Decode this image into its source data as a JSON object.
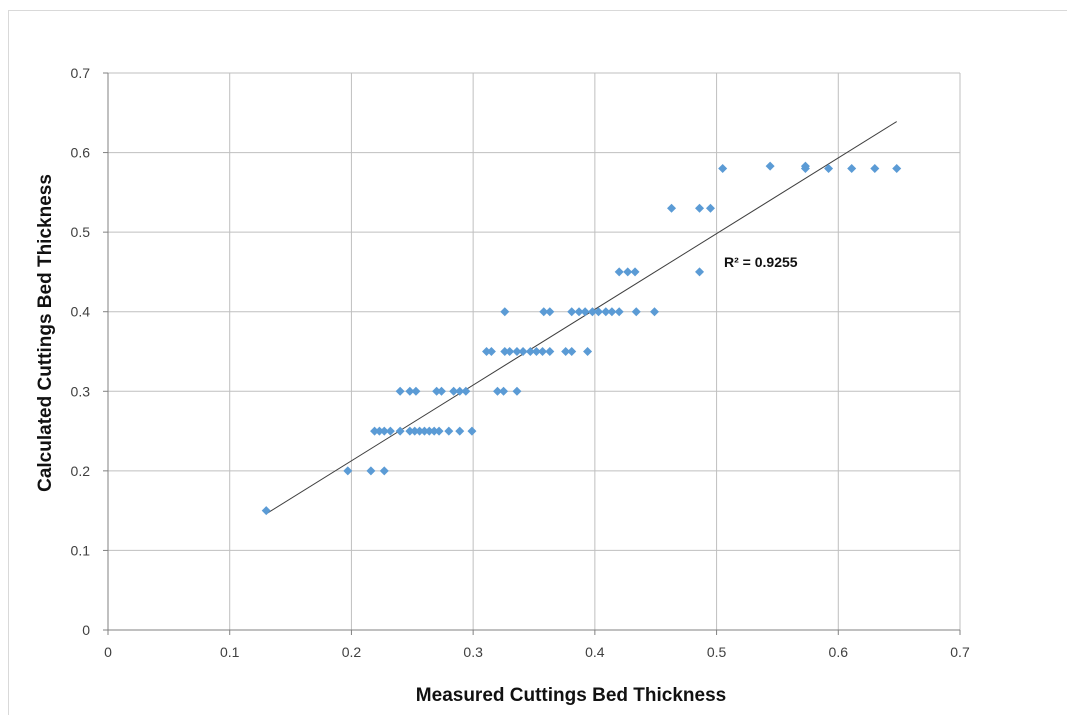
{
  "chart_data": {
    "type": "scatter",
    "title": "",
    "xlabel": "Measured  Cuttings  Bed Thickness",
    "ylabel": "Calculated  Cuttings Bed  Thickness",
    "xlim": [
      0,
      0.7
    ],
    "ylim": [
      0,
      0.7
    ],
    "xticks": [
      0,
      0.1,
      0.2,
      0.3,
      0.4,
      0.5,
      0.6,
      0.7
    ],
    "yticks": [
      0,
      0.1,
      0.2,
      0.3,
      0.4,
      0.5,
      0.6,
      0.7
    ],
    "xtick_labels": [
      "0",
      "0.1",
      "0.2",
      "0.3",
      "0.4",
      "0.5",
      "0.6",
      "0.7"
    ],
    "ytick_labels": [
      "0",
      "0.1",
      "0.2",
      "0.3",
      "0.4",
      "0.5",
      "0.6",
      "0.7"
    ],
    "grid": true,
    "marker_color": "#5b9bd5",
    "trendline_color": "#404040",
    "trendline": {
      "x": [
        0.13,
        0.648
      ],
      "y": [
        0.146,
        0.639
      ]
    },
    "annotation": "R² = 0.9255",
    "points": [
      [
        0.13,
        0.15
      ],
      [
        0.197,
        0.2
      ],
      [
        0.216,
        0.2
      ],
      [
        0.227,
        0.2
      ],
      [
        0.219,
        0.25
      ],
      [
        0.223,
        0.25
      ],
      [
        0.227,
        0.25
      ],
      [
        0.232,
        0.25
      ],
      [
        0.24,
        0.25
      ],
      [
        0.248,
        0.25
      ],
      [
        0.252,
        0.25
      ],
      [
        0.256,
        0.25
      ],
      [
        0.26,
        0.25
      ],
      [
        0.264,
        0.25
      ],
      [
        0.268,
        0.25
      ],
      [
        0.272,
        0.25
      ],
      [
        0.28,
        0.25
      ],
      [
        0.289,
        0.25
      ],
      [
        0.299,
        0.25
      ],
      [
        0.24,
        0.3
      ],
      [
        0.248,
        0.3
      ],
      [
        0.253,
        0.3
      ],
      [
        0.27,
        0.3
      ],
      [
        0.274,
        0.3
      ],
      [
        0.284,
        0.3
      ],
      [
        0.289,
        0.3
      ],
      [
        0.294,
        0.3
      ],
      [
        0.32,
        0.3
      ],
      [
        0.325,
        0.3
      ],
      [
        0.336,
        0.3
      ],
      [
        0.311,
        0.35
      ],
      [
        0.315,
        0.35
      ],
      [
        0.326,
        0.35
      ],
      [
        0.33,
        0.35
      ],
      [
        0.336,
        0.35
      ],
      [
        0.341,
        0.35
      ],
      [
        0.347,
        0.35
      ],
      [
        0.352,
        0.35
      ],
      [
        0.357,
        0.35
      ],
      [
        0.363,
        0.35
      ],
      [
        0.376,
        0.35
      ],
      [
        0.381,
        0.35
      ],
      [
        0.394,
        0.35
      ],
      [
        0.326,
        0.4
      ],
      [
        0.358,
        0.4
      ],
      [
        0.363,
        0.4
      ],
      [
        0.381,
        0.4
      ],
      [
        0.387,
        0.4
      ],
      [
        0.392,
        0.4
      ],
      [
        0.398,
        0.4
      ],
      [
        0.403,
        0.4
      ],
      [
        0.409,
        0.4
      ],
      [
        0.414,
        0.4
      ],
      [
        0.42,
        0.4
      ],
      [
        0.434,
        0.4
      ],
      [
        0.449,
        0.4
      ],
      [
        0.42,
        0.45
      ],
      [
        0.427,
        0.45
      ],
      [
        0.433,
        0.45
      ],
      [
        0.486,
        0.45
      ],
      [
        0.463,
        0.53
      ],
      [
        0.486,
        0.53
      ],
      [
        0.495,
        0.53
      ],
      [
        0.505,
        0.58
      ],
      [
        0.544,
        0.583
      ],
      [
        0.573,
        0.58
      ],
      [
        0.573,
        0.583
      ],
      [
        0.592,
        0.58
      ],
      [
        0.611,
        0.58
      ],
      [
        0.63,
        0.58
      ],
      [
        0.648,
        0.58
      ]
    ]
  }
}
